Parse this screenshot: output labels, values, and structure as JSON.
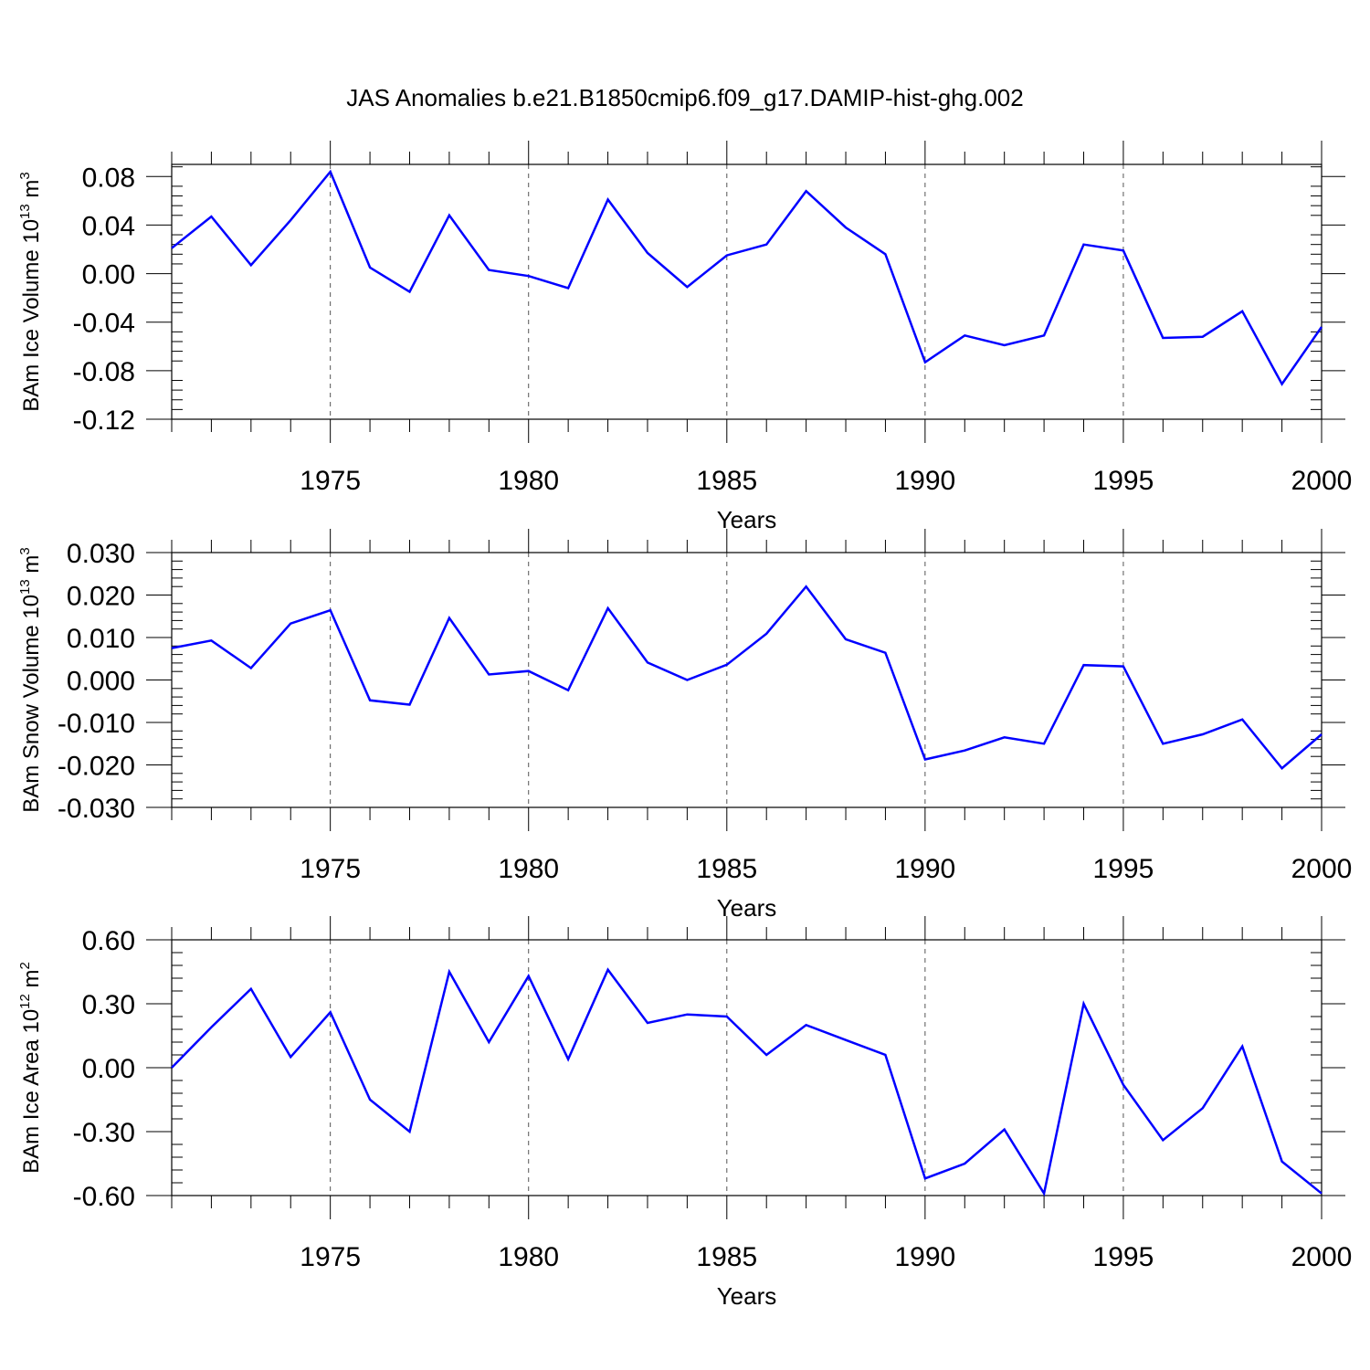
{
  "title": "JAS Anomalies b.e21.B1850cmip6.f09_g17.DAMIP-hist-ghg.002",
  "chart_data": [
    {
      "type": "line",
      "ylabel": {
        "main": "BAm Ice Volume 10",
        "exp": "13",
        "unit": " m",
        "unit_exp": "3"
      },
      "xlabel": "Years",
      "xlim": [
        1971,
        2000
      ],
      "ylim": [
        -0.12,
        0.09
      ],
      "yticks": [
        -0.12,
        -0.08,
        -0.04,
        0.0,
        0.04,
        0.08
      ],
      "ytick_labels": [
        "-0.12",
        "-0.08",
        "-0.04",
        "0.00",
        "0.04",
        "0.08"
      ],
      "xticks": [
        1975,
        1980,
        1985,
        1990,
        1995,
        2000
      ],
      "xtick_labels": [
        "1975",
        "1980",
        "1985",
        "1990",
        "1995",
        "2000"
      ],
      "line_color": "#0000ff",
      "x": [
        1971,
        1972,
        1973,
        1974,
        1975,
        1976,
        1977,
        1978,
        1979,
        1980,
        1981,
        1982,
        1983,
        1984,
        1985,
        1986,
        1987,
        1988,
        1989,
        1990,
        1991,
        1992,
        1993,
        1994,
        1995,
        1996,
        1997,
        1998,
        1999,
        2000
      ],
      "values": [
        0.021,
        0.047,
        0.007,
        0.044,
        0.084,
        0.005,
        -0.015,
        0.048,
        0.003,
        -0.002,
        -0.012,
        0.061,
        0.017,
        -0.011,
        0.015,
        0.024,
        0.068,
        0.038,
        0.016,
        -0.073,
        -0.051,
        -0.059,
        -0.051,
        0.024,
        0.019,
        -0.053,
        -0.052,
        -0.031,
        -0.091,
        -0.044
      ]
    },
    {
      "type": "line",
      "ylabel": {
        "main": "BAm Snow Volume 10",
        "exp": "13",
        "unit": " m",
        "unit_exp": "3"
      },
      "xlabel": "Years",
      "xlim": [
        1971,
        2000
      ],
      "ylim": [
        -0.03,
        0.03
      ],
      "yticks": [
        -0.03,
        -0.02,
        -0.01,
        0.0,
        0.01,
        0.02,
        0.03
      ],
      "ytick_labels": [
        "-0.030",
        "-0.020",
        "-0.010",
        "0.000",
        "0.010",
        "0.020",
        "0.030"
      ],
      "xticks": [
        1975,
        1980,
        1985,
        1990,
        1995,
        2000
      ],
      "xtick_labels": [
        "1975",
        "1980",
        "1985",
        "1990",
        "1995",
        "2000"
      ],
      "line_color": "#0000ff",
      "x": [
        1971,
        1972,
        1973,
        1974,
        1975,
        1976,
        1977,
        1978,
        1979,
        1980,
        1981,
        1982,
        1983,
        1984,
        1985,
        1986,
        1987,
        1988,
        1989,
        1990,
        1991,
        1992,
        1993,
        1994,
        1995,
        1996,
        1997,
        1998,
        1999,
        2000
      ],
      "values": [
        0.0075,
        0.0093,
        0.0028,
        0.0133,
        0.0164,
        -0.0048,
        -0.0058,
        0.0146,
        0.0013,
        0.0021,
        -0.0024,
        0.0169,
        0.0041,
        0.0,
        0.0036,
        0.0109,
        0.022,
        0.0096,
        0.0064,
        -0.0187,
        -0.0166,
        -0.0135,
        -0.015,
        0.0035,
        0.0032,
        -0.015,
        -0.0128,
        -0.0093,
        -0.0208,
        -0.0128
      ]
    },
    {
      "type": "line",
      "ylabel": {
        "main": "BAm Ice Area 10",
        "exp": "12",
        "unit": " m",
        "unit_exp": "2"
      },
      "xlabel": "Years",
      "xlim": [
        1971,
        2000
      ],
      "ylim": [
        -0.6,
        0.6
      ],
      "yticks": [
        -0.6,
        -0.3,
        0.0,
        0.3,
        0.6
      ],
      "ytick_labels": [
        "-0.60",
        "-0.30",
        "0.00",
        "0.30",
        "0.60"
      ],
      "xticks": [
        1975,
        1980,
        1985,
        1990,
        1995,
        2000
      ],
      "xtick_labels": [
        "1975",
        "1980",
        "1985",
        "1990",
        "1995",
        "2000"
      ],
      "line_color": "#0000ff",
      "x": [
        1971,
        1972,
        1973,
        1974,
        1975,
        1976,
        1977,
        1978,
        1979,
        1980,
        1981,
        1982,
        1983,
        1984,
        1985,
        1986,
        1987,
        1988,
        1989,
        1990,
        1991,
        1992,
        1993,
        1994,
        1995,
        1996,
        1997,
        1998,
        1999,
        2000
      ],
      "values": [
        0.0,
        0.19,
        0.37,
        0.05,
        0.26,
        -0.15,
        -0.3,
        0.45,
        0.12,
        0.43,
        0.04,
        0.46,
        0.21,
        0.25,
        0.24,
        0.06,
        0.2,
        0.13,
        0.06,
        -0.52,
        -0.45,
        -0.29,
        -0.59,
        0.3,
        -0.08,
        -0.34,
        -0.19,
        0.1,
        -0.44,
        -0.59
      ]
    }
  ]
}
